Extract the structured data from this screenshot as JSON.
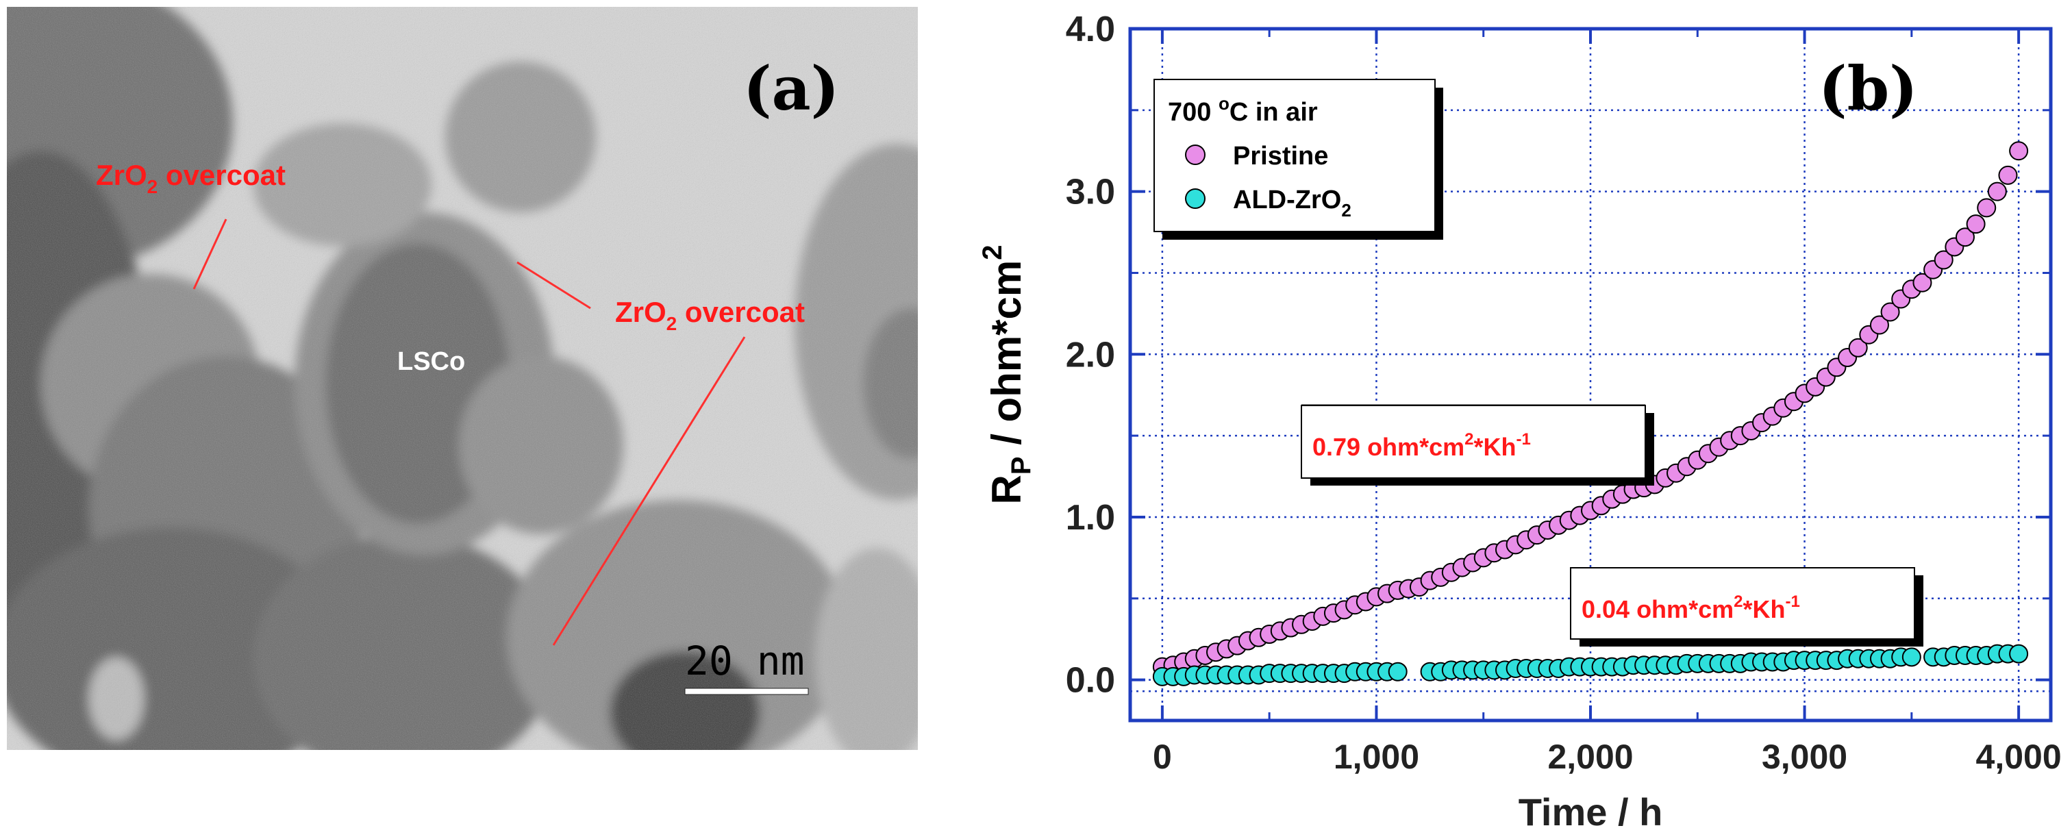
{
  "panel_a": {
    "label": "(a)",
    "annotation_top": {
      "text": "ZrO",
      "sub": "2",
      "rest": " overcoat"
    },
    "annotation_right": {
      "text": "ZrO",
      "sub": "2",
      "rest": " overcoat"
    },
    "particle_label": "LSCo",
    "scale_bar": "20 nm",
    "annotation_color": "#ff1a1a"
  },
  "panel_b": {
    "label": "(b)"
  },
  "chart_data": {
    "type": "scatter",
    "title": "",
    "xlabel": "Time / h",
    "ylabel": {
      "main": "R",
      "sub": "P",
      "rest": " / ohm*cm",
      "sup": "2"
    },
    "xlim": [
      -150,
      4150
    ],
    "ylim": [
      -0.25,
      4.0
    ],
    "xticks": [
      0,
      1000,
      2000,
      3000,
      4000
    ],
    "xtick_labels": [
      "0",
      "1,000",
      "2,000",
      "3,000",
      "4,000"
    ],
    "yticks": [
      0.0,
      1.0,
      2.0,
      3.0,
      4.0
    ],
    "ytick_labels": [
      "0.0",
      "1.0",
      "2.0",
      "3.0",
      "4.0"
    ],
    "grid": true,
    "grid_color": "#1f3dbf",
    "legend": {
      "position": "top-left",
      "title": {
        "main": "700 ",
        "sup": "o",
        "rest": "C in air"
      },
      "entries": [
        {
          "main": "Pristine",
          "sub": ""
        },
        {
          "main": "ALD-ZrO",
          "sub": "2"
        }
      ]
    },
    "annotations": [
      {
        "parts": [
          "0.79 ohm",
          "*",
          "cm",
          "2",
          "*Kh",
          "-1"
        ],
        "color": "#ff1a1a"
      },
      {
        "parts": [
          "0.04 ohm",
          "*",
          "cm",
          "2",
          "*Kh",
          "-1"
        ],
        "color": "#ff1a1a"
      }
    ],
    "series": [
      {
        "name": "Pristine",
        "color": "#e88ee8",
        "x": [
          0,
          50,
          100,
          150,
          200,
          250,
          300,
          350,
          400,
          450,
          500,
          550,
          600,
          650,
          700,
          750,
          800,
          850,
          900,
          950,
          1000,
          1050,
          1100,
          1150,
          1200,
          1250,
          1300,
          1350,
          1400,
          1450,
          1500,
          1550,
          1600,
          1650,
          1700,
          1750,
          1800,
          1850,
          1900,
          1950,
          2000,
          2050,
          2100,
          2150,
          2200,
          2250,
          2300,
          2350,
          2400,
          2450,
          2500,
          2550,
          2600,
          2650,
          2700,
          2750,
          2800,
          2850,
          2900,
          2950,
          3000,
          3050,
          3100,
          3150,
          3200,
          3250,
          3300,
          3350,
          3400,
          3450,
          3500,
          3550,
          3600,
          3650,
          3700,
          3750,
          3800,
          3850,
          3900,
          3950,
          4000
        ],
        "values": [
          0.08,
          0.09,
          0.11,
          0.13,
          0.15,
          0.17,
          0.19,
          0.21,
          0.24,
          0.26,
          0.28,
          0.3,
          0.32,
          0.34,
          0.36,
          0.39,
          0.41,
          0.43,
          0.46,
          0.48,
          0.51,
          0.53,
          0.55,
          0.56,
          0.57,
          0.61,
          0.63,
          0.66,
          0.69,
          0.72,
          0.75,
          0.78,
          0.8,
          0.83,
          0.86,
          0.89,
          0.92,
          0.95,
          0.98,
          1.01,
          1.04,
          1.07,
          1.11,
          1.14,
          1.17,
          1.18,
          1.2,
          1.24,
          1.27,
          1.31,
          1.35,
          1.39,
          1.43,
          1.47,
          1.5,
          1.53,
          1.58,
          1.62,
          1.67,
          1.71,
          1.76,
          1.8,
          1.86,
          1.92,
          1.98,
          2.04,
          2.12,
          2.18,
          2.26,
          2.34,
          2.4,
          2.44,
          2.52,
          2.58,
          2.66,
          2.72,
          2.8,
          2.9,
          3.0,
          3.1,
          3.25
        ]
      },
      {
        "name": "ALD-ZrO2",
        "color": "#2fe0dc",
        "x": [
          0,
          50,
          100,
          150,
          200,
          250,
          300,
          350,
          400,
          450,
          500,
          550,
          600,
          650,
          700,
          750,
          800,
          850,
          900,
          950,
          1000,
          1050,
          1100,
          1250,
          1300,
          1350,
          1400,
          1450,
          1500,
          1550,
          1600,
          1650,
          1700,
          1750,
          1800,
          1850,
          1900,
          1950,
          2000,
          2050,
          2100,
          2150,
          2200,
          2250,
          2300,
          2350,
          2400,
          2450,
          2500,
          2550,
          2600,
          2650,
          2700,
          2750,
          2800,
          2850,
          2900,
          2950,
          3000,
          3050,
          3100,
          3150,
          3200,
          3250,
          3300,
          3350,
          3400,
          3450,
          3500,
          3600,
          3650,
          3700,
          3750,
          3800,
          3850,
          3900,
          3950,
          4000
        ],
        "values": [
          0.02,
          0.02,
          0.02,
          0.03,
          0.03,
          0.03,
          0.03,
          0.03,
          0.03,
          0.03,
          0.04,
          0.04,
          0.04,
          0.04,
          0.04,
          0.04,
          0.04,
          0.04,
          0.05,
          0.05,
          0.05,
          0.05,
          0.05,
          0.05,
          0.05,
          0.06,
          0.06,
          0.06,
          0.06,
          0.06,
          0.06,
          0.07,
          0.07,
          0.07,
          0.07,
          0.07,
          0.08,
          0.08,
          0.08,
          0.08,
          0.08,
          0.08,
          0.09,
          0.09,
          0.09,
          0.09,
          0.09,
          0.1,
          0.1,
          0.1,
          0.1,
          0.1,
          0.1,
          0.11,
          0.11,
          0.11,
          0.11,
          0.12,
          0.12,
          0.12,
          0.12,
          0.12,
          0.13,
          0.13,
          0.13,
          0.13,
          0.13,
          0.14,
          0.14,
          0.14,
          0.14,
          0.15,
          0.15,
          0.15,
          0.15,
          0.16,
          0.16,
          0.16
        ]
      }
    ]
  }
}
